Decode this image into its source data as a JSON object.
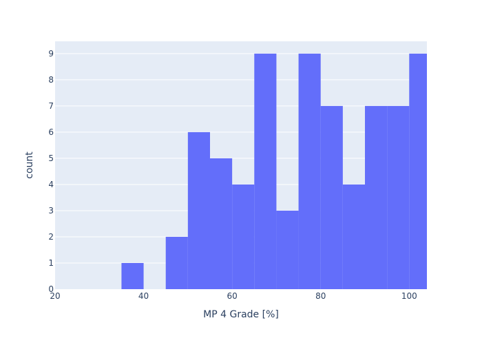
{
  "chart_data": {
    "type": "bar",
    "subtype": "histogram",
    "xlabel": "MP 4 Grade [%]",
    "ylabel": "count",
    "xlim": [
      20,
      104
    ],
    "ylim": [
      0,
      9.47
    ],
    "bin_size": 5,
    "x_ticks": [
      20,
      40,
      60,
      80,
      100
    ],
    "y_ticks": [
      0,
      1,
      2,
      3,
      4,
      5,
      6,
      7,
      8,
      9
    ],
    "bins": [
      {
        "start": 35,
        "end": 40,
        "count": 1
      },
      {
        "start": 45,
        "end": 50,
        "count": 2
      },
      {
        "start": 50,
        "end": 55,
        "count": 6
      },
      {
        "start": 55,
        "end": 60,
        "count": 5
      },
      {
        "start": 60,
        "end": 65,
        "count": 4
      },
      {
        "start": 65,
        "end": 70,
        "count": 9
      },
      {
        "start": 70,
        "end": 75,
        "count": 3
      },
      {
        "start": 75,
        "end": 80,
        "count": 9
      },
      {
        "start": 80,
        "end": 85,
        "count": 7
      },
      {
        "start": 85,
        "end": 90,
        "count": 4
      },
      {
        "start": 90,
        "end": 95,
        "count": 7
      },
      {
        "start": 95,
        "end": 100,
        "count": 7
      },
      {
        "start": 100,
        "end": 105,
        "count": 9
      }
    ],
    "grid": true,
    "colors": {
      "bar": "#636efa",
      "plot_bg": "#e5ecf6",
      "grid": "#ffffff",
      "text": "#2a3f5f"
    }
  }
}
